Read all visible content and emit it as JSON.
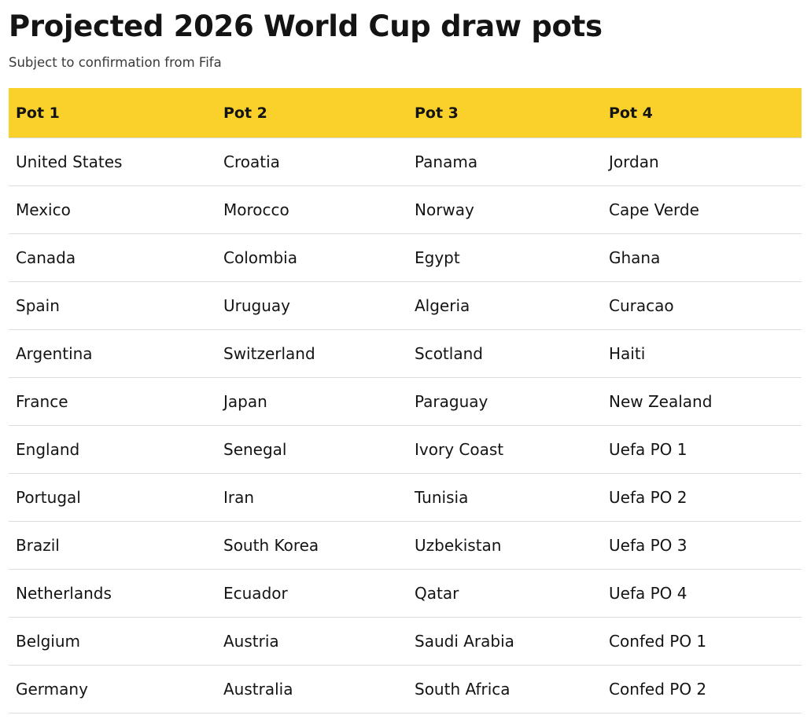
{
  "header": {
    "title": "Projected 2026 World Cup draw pots",
    "subtitle": "Subject to confirmation from Fifa"
  },
  "table": {
    "columns": [
      "Pot 1",
      "Pot 2",
      "Pot 3",
      "Pot 4"
    ],
    "rows": [
      [
        "United States",
        "Croatia",
        "Panama",
        "Jordan"
      ],
      [
        "Mexico",
        "Morocco",
        "Norway",
        "Cape Verde"
      ],
      [
        "Canada",
        "Colombia",
        "Egypt",
        "Ghana"
      ],
      [
        "Spain",
        "Uruguay",
        "Algeria",
        "Curacao"
      ],
      [
        "Argentina",
        "Switzerland",
        "Scotland",
        "Haiti"
      ],
      [
        "France",
        "Japan",
        "Paraguay",
        "New Zealand"
      ],
      [
        "England",
        "Senegal",
        "Ivory Coast",
        "Uefa PO 1"
      ],
      [
        "Portugal",
        "Iran",
        "Tunisia",
        "Uefa PO 2"
      ],
      [
        "Brazil",
        "South Korea",
        "Uzbekistan",
        "Uefa PO 3"
      ],
      [
        "Netherlands",
        "Ecuador",
        "Qatar",
        "Uefa PO 4"
      ],
      [
        "Belgium",
        "Austria",
        "Saudi Arabia",
        "Confed PO 1"
      ],
      [
        "Germany",
        "Australia",
        "South Africa",
        "Confed PO 2"
      ]
    ]
  },
  "colors": {
    "header_background": "#f9d12a",
    "text": "#141414",
    "row_divider": "#dcdcdc"
  }
}
